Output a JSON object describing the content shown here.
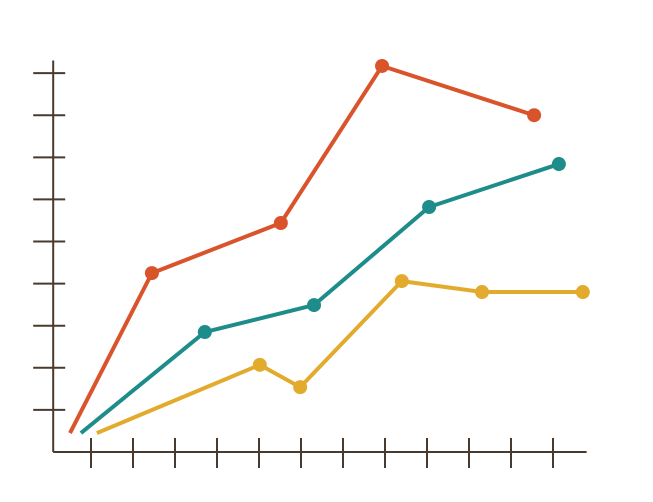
{
  "chart_data": {
    "type": "line",
    "xlim": [
      0.1,
      12.8
    ],
    "ylim": [
      0,
      9.3
    ],
    "xticks": [
      1,
      2,
      3,
      4,
      5,
      6,
      7,
      8,
      9,
      10,
      11,
      12
    ],
    "yticks": [
      1,
      2,
      3,
      4,
      5,
      6,
      7,
      8,
      9
    ],
    "axis_color": "#4a3a2e",
    "first_point_marker": false,
    "series": [
      {
        "color": "#d9532b",
        "x": [
          0.5,
          2.45,
          5.52,
          7.93,
          11.55
        ],
        "values": [
          0.45,
          4.25,
          5.44,
          9.17,
          8.0
        ]
      },
      {
        "color": "#1f8c8c",
        "x": [
          0.76,
          3.71,
          6.31,
          9.05,
          12.14
        ],
        "values": [
          0.45,
          2.85,
          3.49,
          5.82,
          6.84
        ]
      },
      {
        "color": "#e3ab2d",
        "x": [
          1.14,
          5.02,
          5.98,
          8.4,
          10.31,
          12.71
        ],
        "values": [
          0.45,
          2.07,
          1.54,
          4.06,
          3.8,
          3.8
        ]
      }
    ]
  }
}
